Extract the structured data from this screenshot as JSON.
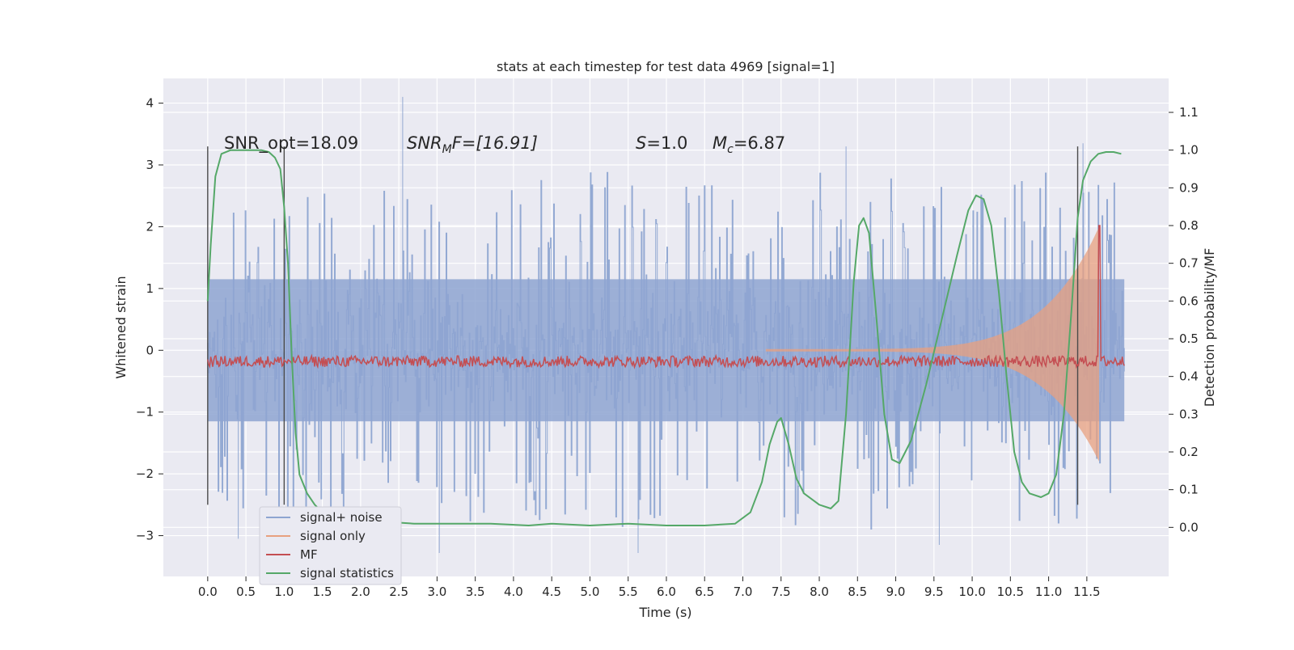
{
  "chart_data": {
    "type": "line",
    "title": "stats at each timestep for test data 4969 [signal=1]",
    "xlabel": "Time (s)",
    "ylabel_left": "Whitened strain",
    "ylabel_right": "Detection probability/MF",
    "xlim": [
      -0.58,
      12.57
    ],
    "ylim_left": [
      -3.66,
      4.4
    ],
    "ylim_right": [
      -0.13,
      1.19
    ],
    "x_ticks": [
      "0.0",
      "0.5",
      "1.0",
      "1.5",
      "2.0",
      "2.5",
      "3.0",
      "3.5",
      "4.0",
      "4.5",
      "5.0",
      "5.5",
      "6.0",
      "6.5",
      "7.0",
      "7.5",
      "8.0",
      "8.5",
      "9.0",
      "9.5",
      "10.0",
      "10.5",
      "11.0",
      "11.5"
    ],
    "y_ticks_left": [
      "4",
      "3",
      "2",
      "1",
      "0",
      "−1",
      "−2",
      "−3"
    ],
    "y_ticks_right": [
      "1.1",
      "1.0",
      "0.9",
      "0.8",
      "0.7",
      "0.6",
      "0.5",
      "0.4",
      "0.3",
      "0.2",
      "0.1",
      "0.0"
    ],
    "grid": true,
    "legend_position": "lower-left",
    "annotations": {
      "snr_opt": "SNR_opt=18.09",
      "snr_mf_italic": "SNR",
      "snr_mf_sub": "M",
      "snr_mf_rest": "F=[16.91]",
      "s_italic": "S",
      "s_rest": "=1.0",
      "mc_italic": "M",
      "mc_sub": "c",
      "mc_rest": "=6.87"
    },
    "vertical_markers": [
      0.0,
      1.0,
      11.38
    ],
    "series": [
      {
        "name": "signal+ noise",
        "axis": "left",
        "color": "#8ea5d1",
        "envelope": {
          "t_start": 0.0,
          "t_end": 11.99,
          "typical_abs": 1.6,
          "max": 4.1,
          "min": -3.28
        },
        "peaks": [
          [
            2.55,
            4.1
          ],
          [
            11.45,
            3.35
          ],
          [
            8.35,
            3.3
          ],
          [
            3.03,
            -3.28
          ],
          [
            5.63,
            -3.28
          ],
          [
            9.57,
            -3.15
          ],
          [
            0.4,
            -3.05
          ]
        ]
      },
      {
        "name": "signal only",
        "axis": "left",
        "color": "#e8a07f",
        "chirp": {
          "start": 7.3,
          "end": 11.66,
          "amp_start": 0.02,
          "amp_end": 2.0
        }
      },
      {
        "name": "MF",
        "axis": "right",
        "color": "#c44e52",
        "baseline": 0.44,
        "noise": 0.015,
        "spike": [
          11.66,
          0.8
        ]
      },
      {
        "name": "signal statistics",
        "axis": "right",
        "color": "#55a868",
        "x": [
          0.0,
          0.04,
          0.1,
          0.18,
          0.3,
          0.5,
          0.7,
          0.8,
          0.88,
          0.95,
          1.0,
          1.05,
          1.1,
          1.15,
          1.2,
          1.3,
          1.4,
          1.5,
          1.7,
          2.0,
          2.3,
          2.7,
          3.2,
          3.7,
          4.2,
          4.5,
          5.0,
          5.5,
          6.0,
          6.5,
          6.9,
          7.1,
          7.25,
          7.35,
          7.45,
          7.5,
          7.6,
          7.7,
          7.8,
          8.0,
          8.15,
          8.25,
          8.35,
          8.45,
          8.52,
          8.58,
          8.65,
          8.75,
          8.85,
          8.95,
          9.05,
          9.2,
          9.4,
          9.6,
          9.8,
          9.95,
          10.05,
          10.15,
          10.25,
          10.35,
          10.45,
          10.55,
          10.65,
          10.75,
          10.9,
          11.0,
          11.1,
          11.2,
          11.3,
          11.38,
          11.45,
          11.55,
          11.65,
          11.75,
          11.85,
          11.95
        ],
        "y": [
          0.6,
          0.75,
          0.93,
          0.99,
          1.0,
          1.0,
          1.0,
          0.995,
          0.98,
          0.95,
          0.85,
          0.7,
          0.45,
          0.25,
          0.14,
          0.09,
          0.06,
          0.04,
          0.025,
          0.03,
          0.015,
          0.01,
          0.01,
          0.01,
          0.005,
          0.01,
          0.005,
          0.01,
          0.005,
          0.005,
          0.01,
          0.04,
          0.12,
          0.22,
          0.28,
          0.29,
          0.22,
          0.13,
          0.09,
          0.06,
          0.05,
          0.07,
          0.3,
          0.65,
          0.8,
          0.82,
          0.78,
          0.55,
          0.3,
          0.18,
          0.17,
          0.23,
          0.38,
          0.55,
          0.72,
          0.84,
          0.88,
          0.87,
          0.8,
          0.62,
          0.4,
          0.2,
          0.12,
          0.09,
          0.08,
          0.09,
          0.14,
          0.3,
          0.58,
          0.82,
          0.92,
          0.97,
          0.99,
          0.995,
          0.995,
          0.99
        ]
      }
    ]
  }
}
